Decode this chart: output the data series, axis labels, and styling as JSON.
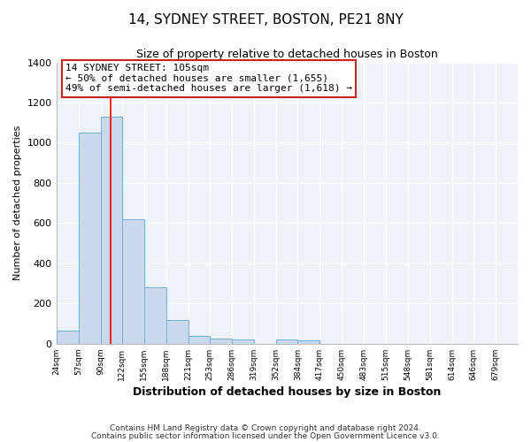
{
  "title": "14, SYDNEY STREET, BOSTON, PE21 8NY",
  "subtitle": "Size of property relative to detached houses in Boston",
  "xlabel": "Distribution of detached houses by size in Boston",
  "ylabel": "Number of detached properties",
  "bar_color": "#c8d9ee",
  "bar_edge_color": "#7aadd4",
  "plot_bg_color": "#eef2f9",
  "fig_bg_color": "#ffffff",
  "grid_color": "#ffffff",
  "bin_labels": [
    "24sqm",
    "57sqm",
    "90sqm",
    "122sqm",
    "155sqm",
    "188sqm",
    "221sqm",
    "253sqm",
    "286sqm",
    "319sqm",
    "352sqm",
    "384sqm",
    "417sqm",
    "450sqm",
    "483sqm",
    "515sqm",
    "548sqm",
    "581sqm",
    "614sqm",
    "646sqm",
    "679sqm"
  ],
  "bin_edges": [
    24,
    57,
    90,
    122,
    155,
    188,
    221,
    253,
    286,
    319,
    352,
    384,
    417,
    450,
    483,
    515,
    548,
    581,
    614,
    646,
    679,
    712
  ],
  "bar_heights": [
    65,
    1050,
    1130,
    620,
    280,
    120,
    40,
    25,
    20,
    0,
    20,
    15,
    0,
    0,
    0,
    0,
    0,
    0,
    0,
    0,
    0
  ],
  "red_line_x": 105,
  "ylim": [
    0,
    1400
  ],
  "yticks": [
    0,
    200,
    400,
    600,
    800,
    1000,
    1200,
    1400
  ],
  "annotation_title": "14 SYDNEY STREET: 105sqm",
  "annotation_line1": "← 50% of detached houses are smaller (1,655)",
  "annotation_line2": "49% of semi-detached houses are larger (1,618) →",
  "footnote1": "Contains HM Land Registry data © Crown copyright and database right 2024.",
  "footnote2": "Contains public sector information licensed under the Open Government Licence v3.0."
}
